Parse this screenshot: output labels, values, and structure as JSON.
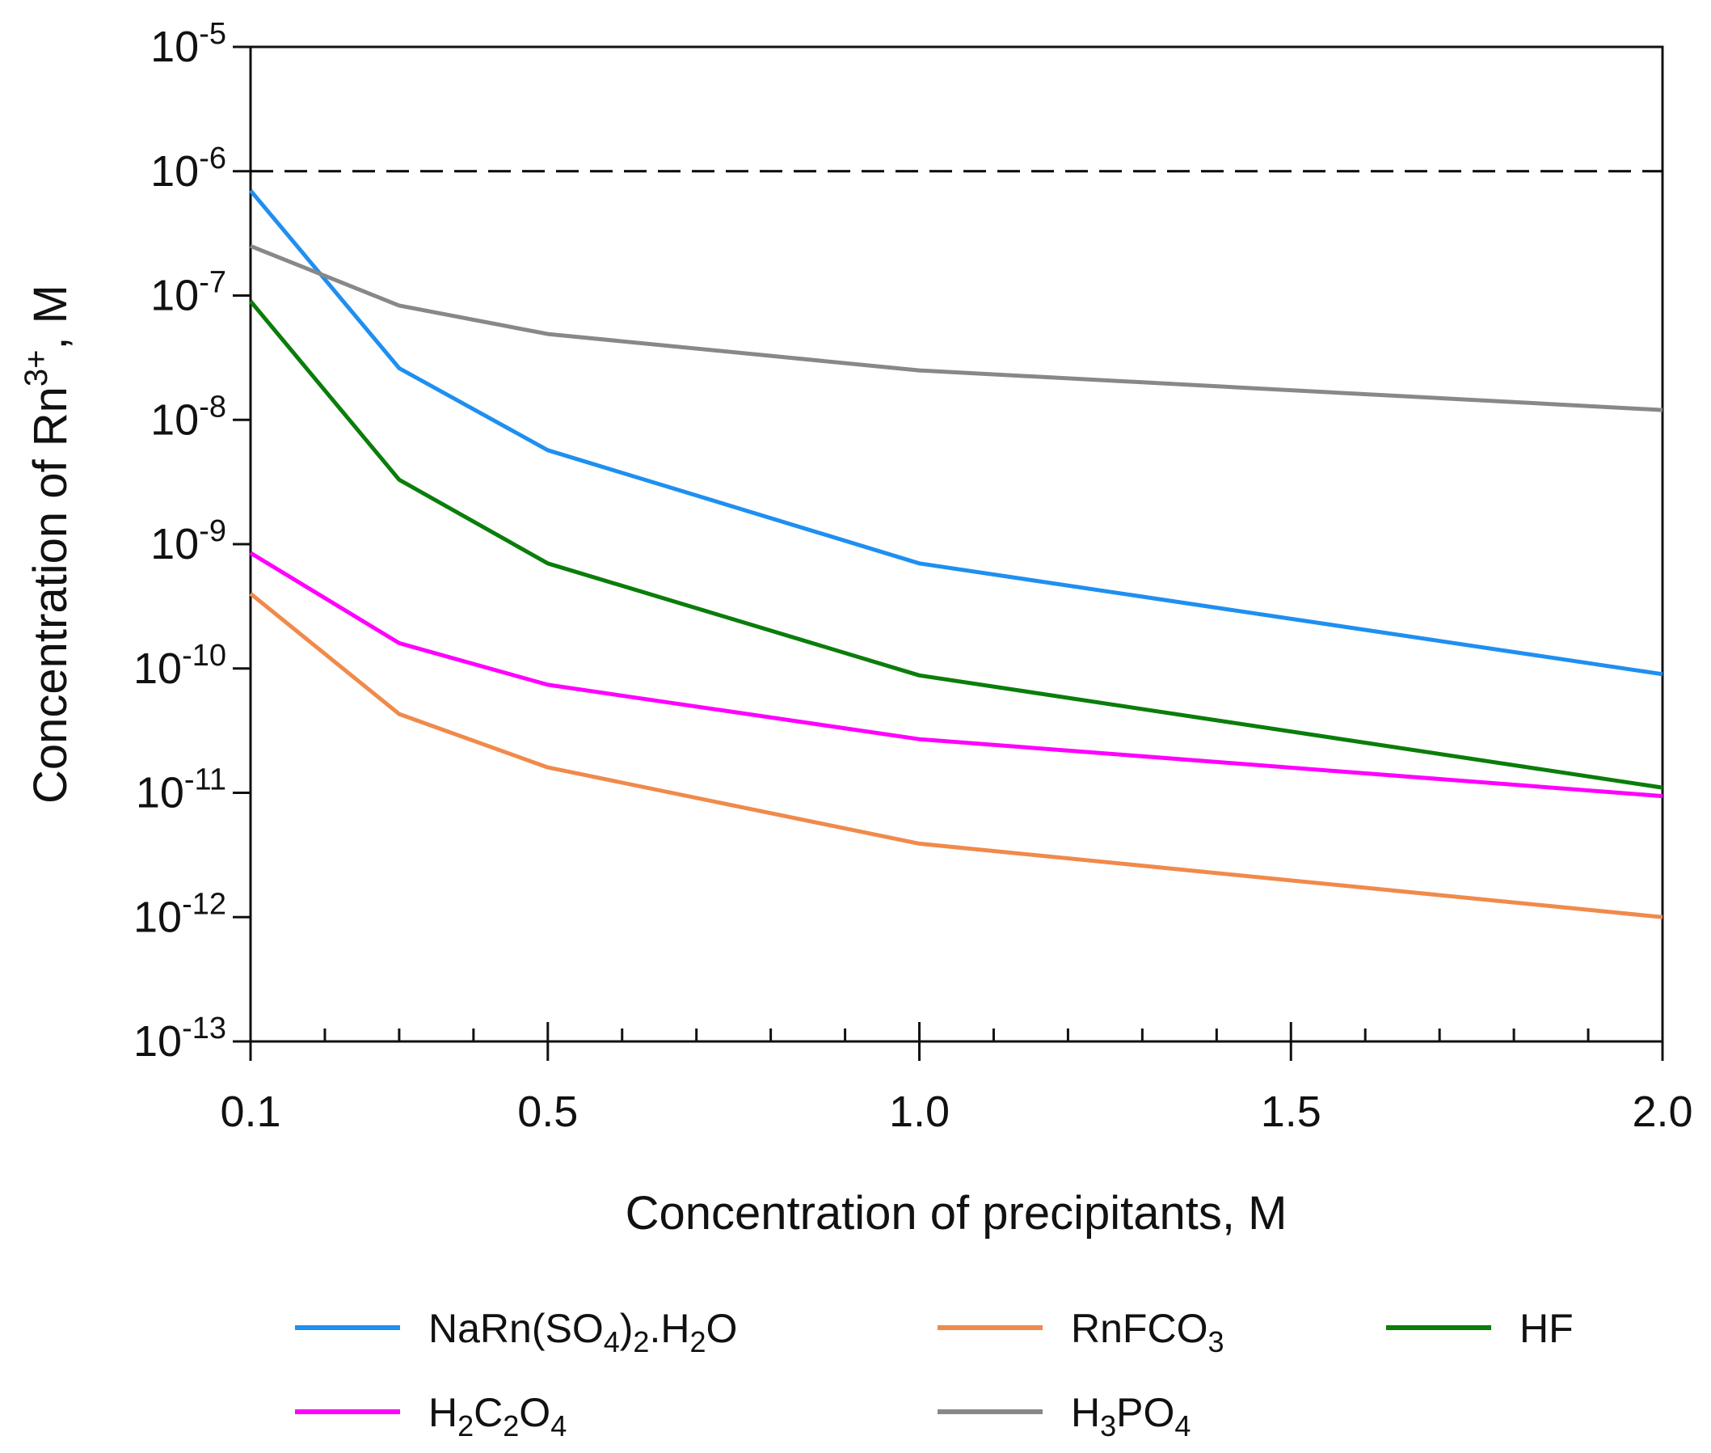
{
  "chart_data": {
    "type": "line",
    "xlabel": "Concentration of precipitants, M",
    "ylabel": "Concentration of Rn3+, M",
    "ylabel_parts": {
      "before": "Concentration of Rn",
      "sup": "3+",
      "after": ", M"
    },
    "x_ticks": [
      "0.1",
      "0.5",
      "1.0",
      "1.5",
      "2.0"
    ],
    "x_tick_values": [
      0.1,
      0.5,
      1.0,
      1.5,
      2.0
    ],
    "y_scale": "log",
    "y_ticks": [
      {
        "value": 1e-05,
        "label_base": "10",
        "label_exp": "-5"
      },
      {
        "value": 1e-06,
        "label_base": "10",
        "label_exp": "-6"
      },
      {
        "value": 1e-07,
        "label_base": "10",
        "label_exp": "-7"
      },
      {
        "value": 1e-08,
        "label_base": "10",
        "label_exp": "-8"
      },
      {
        "value": 1e-09,
        "label_base": "10",
        "label_exp": "-9"
      },
      {
        "value": 1e-10,
        "label_base": "10",
        "label_exp": "-10"
      },
      {
        "value": 1e-11,
        "label_base": "10",
        "label_exp": "-11"
      },
      {
        "value": 1e-12,
        "label_base": "10",
        "label_exp": "-12"
      },
      {
        "value": 1e-13,
        "label_base": "10",
        "label_exp": "-13"
      }
    ],
    "xlim": [
      0.1,
      2.0
    ],
    "ylim": [
      1e-13,
      1e-05
    ],
    "reference_line": {
      "y": 1e-06,
      "style": "dashed",
      "color": "#000000"
    },
    "x": [
      0.1,
      0.3,
      0.5,
      1.0,
      2.0
    ],
    "series": [
      {
        "name": "NaRn(SO4)2.H2O",
        "color": "#1f8ff0",
        "values": [
          7e-07,
          2.6e-08,
          5.7e-09,
          7e-10,
          9e-11
        ]
      },
      {
        "name": "RnFCO3",
        "color": "#f08a4b",
        "values": [
          4e-10,
          4.3e-11,
          1.6e-11,
          3.9e-12,
          1e-12
        ]
      },
      {
        "name": "HF",
        "color": "#0a7d0a",
        "values": [
          9e-08,
          3.3e-09,
          7e-10,
          8.8e-11,
          1.1e-11
        ]
      },
      {
        "name": "H2C2O4",
        "color": "#ff00ff",
        "values": [
          8.5e-10,
          1.6e-10,
          7.4e-11,
          2.7e-11,
          9.4e-12
        ]
      },
      {
        "name": "H3PO4",
        "color": "#888888",
        "values": [
          2.5e-07,
          8.3e-08,
          4.9e-08,
          2.5e-08,
          1.2e-08
        ]
      }
    ],
    "legend": [
      {
        "series": 0,
        "parts": [
          [
            "NaRn(SO",
            ""
          ],
          [
            "4",
            "sub"
          ],
          [
            ")",
            ""
          ],
          [
            "2",
            "sub"
          ],
          [
            ".H",
            ""
          ],
          [
            "2",
            "sub"
          ],
          [
            "O",
            ""
          ]
        ]
      },
      {
        "series": 1,
        "parts": [
          [
            "RnFCO",
            ""
          ],
          [
            "3",
            "sub"
          ]
        ]
      },
      {
        "series": 2,
        "parts": [
          [
            "HF",
            ""
          ]
        ]
      },
      {
        "series": 3,
        "parts": [
          [
            "H",
            ""
          ],
          [
            "2",
            "sub"
          ],
          [
            "C",
            ""
          ],
          [
            "2",
            "sub"
          ],
          [
            "O",
            ""
          ],
          [
            "4",
            "sub"
          ]
        ]
      },
      {
        "series": 4,
        "parts": [
          [
            "H",
            ""
          ],
          [
            "3",
            "sub"
          ],
          [
            "PO",
            ""
          ],
          [
            "4",
            "sub"
          ]
        ]
      }
    ],
    "legend_position": "bottom",
    "grid": false
  }
}
